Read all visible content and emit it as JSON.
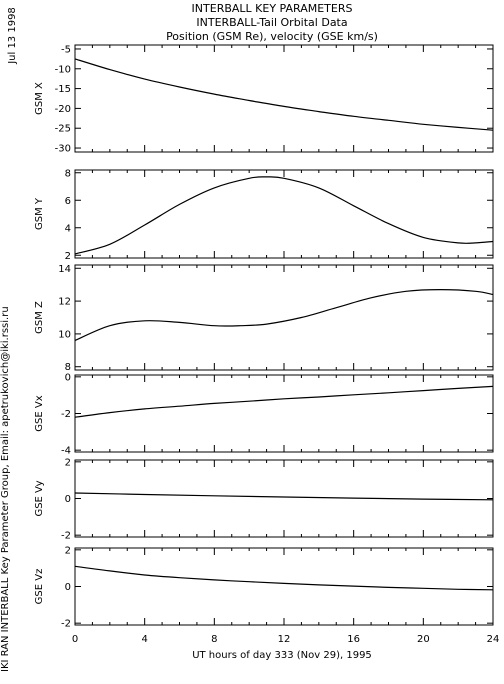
{
  "header": {
    "line1": "INTERBALL KEY PARAMETERS",
    "line2": "INTERBALL-Tail Orbital Data",
    "line3": "Position (GSM Re), velocity (GSE km/s)"
  },
  "side": {
    "date": "Jul 13 1998",
    "credit": "IKI RAN INTERBALL Key Parameter Group, Email: apetrukovich@iki.rssi.ru"
  },
  "chart_data": {
    "type": "line",
    "xlabel": "UT hours of day 333 (Nov 29), 1995",
    "xlim": [
      0,
      24
    ],
    "xticks": [
      0,
      4,
      8,
      12,
      16,
      20,
      24
    ],
    "xtick_labels": [
      "0",
      "4",
      "8",
      "12",
      "16",
      "20",
      "24"
    ],
    "panels": [
      {
        "ylabel": "GSM X",
        "ylim": [
          -31,
          -4
        ],
        "yticks": [
          -5,
          -10,
          -15,
          -20,
          -25,
          -30
        ],
        "ytick_labels": [
          "-5",
          "-10",
          "-15",
          "-20",
          "-25",
          "-30"
        ],
        "x": [
          0,
          2,
          4,
          6,
          8,
          10,
          12,
          14,
          16,
          18,
          20,
          22,
          24
        ],
        "y": [
          -7.5,
          -10.2,
          -12.6,
          -14.6,
          -16.4,
          -18.0,
          -19.5,
          -20.8,
          -22.0,
          -23.0,
          -24.0,
          -24.8,
          -25.5
        ]
      },
      {
        "ylabel": "GSM Y",
        "ylim": [
          1.8,
          8.2
        ],
        "yticks": [
          2,
          4,
          6,
          8
        ],
        "ytick_labels": [
          "2",
          "4",
          "6",
          "8"
        ],
        "x": [
          0,
          2,
          4,
          6,
          8,
          10,
          11,
          12,
          14,
          16,
          18,
          20,
          22,
          23,
          24
        ],
        "y": [
          2.1,
          2.8,
          4.2,
          5.7,
          6.9,
          7.6,
          7.7,
          7.6,
          6.9,
          5.6,
          4.3,
          3.3,
          2.9,
          2.9,
          3.0
        ]
      },
      {
        "ylabel": "GSM Z",
        "ylim": [
          7.8,
          14.2
        ],
        "yticks": [
          8,
          10,
          12,
          14
        ],
        "ytick_labels": [
          "8",
          "10",
          "12",
          "14"
        ],
        "x": [
          0,
          2,
          4,
          6,
          8,
          9.5,
          11,
          13,
          15,
          17,
          19,
          21,
          23,
          24
        ],
        "y": [
          9.6,
          10.5,
          10.8,
          10.7,
          10.5,
          10.5,
          10.6,
          11.0,
          11.6,
          12.2,
          12.6,
          12.7,
          12.6,
          12.4
        ]
      },
      {
        "ylabel": "GSE Vx",
        "ylim": [
          -4.1,
          0.1
        ],
        "yticks": [
          0,
          -2,
          -4
        ],
        "ytick_labels": [
          "0",
          "-2",
          "-4"
        ],
        "x": [
          0,
          2,
          4,
          6,
          8,
          10,
          12,
          14,
          16,
          18,
          20,
          22,
          24
        ],
        "y": [
          -2.2,
          -1.95,
          -1.75,
          -1.6,
          -1.45,
          -1.33,
          -1.2,
          -1.1,
          -0.98,
          -0.87,
          -0.75,
          -0.63,
          -0.52
        ]
      },
      {
        "ylabel": "GSE Vy",
        "ylim": [
          -2.1,
          2.1
        ],
        "yticks": [
          2,
          0,
          -2
        ],
        "ytick_labels": [
          "2",
          "0",
          "-2"
        ],
        "x": [
          0,
          4,
          8,
          12,
          16,
          20,
          24
        ],
        "y": [
          0.3,
          0.22,
          0.15,
          0.08,
          0.02,
          -0.03,
          -0.07
        ]
      },
      {
        "ylabel": "GSE Vz",
        "ylim": [
          -2.1,
          2.1
        ],
        "yticks": [
          2,
          0,
          -2
        ],
        "ytick_labels": [
          "2",
          "0",
          "-2"
        ],
        "x": [
          0,
          2,
          4,
          6,
          8,
          10,
          12,
          14,
          16,
          18,
          20,
          22,
          24
        ],
        "y": [
          1.1,
          0.85,
          0.63,
          0.48,
          0.36,
          0.26,
          0.17,
          0.09,
          0.02,
          -0.05,
          -0.1,
          -0.15,
          -0.18
        ]
      }
    ]
  }
}
